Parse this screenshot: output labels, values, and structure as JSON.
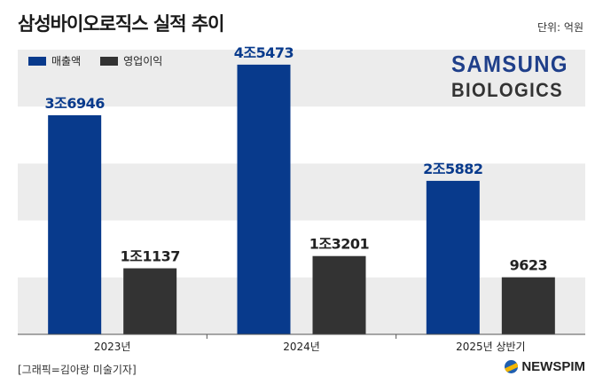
{
  "title": "삼성바이오로직스 실적 추이",
  "unit": "단위: 억원",
  "legend": [
    {
      "label": "매출액",
      "color": "#083a8c"
    },
    {
      "label": "영업이익",
      "color": "#333333"
    }
  ],
  "logo": {
    "line1": "SAMSUNG",
    "line2": "BIOLOGICS"
  },
  "footer": "[그래픽=김아랑 미술기자]",
  "brand": "NEWSPIM",
  "chart_data": {
    "type": "bar",
    "categories": [
      "2023년",
      "2024년",
      "2025년 상반기"
    ],
    "series": [
      {
        "name": "매출액",
        "values": [
          36946,
          45473,
          25882
        ],
        "labels": [
          "3조6946",
          "4조5473",
          "2조5882"
        ],
        "color": "#083a8c"
      },
      {
        "name": "영업이익",
        "values": [
          11137,
          13201,
          9623
        ],
        "labels": [
          "1조1137",
          "1조3201",
          "9623"
        ],
        "color": "#333333"
      }
    ],
    "ylim": [
      0,
      48000
    ],
    "grid": "alternating horizontal bands",
    "legend_position": "top-left"
  }
}
